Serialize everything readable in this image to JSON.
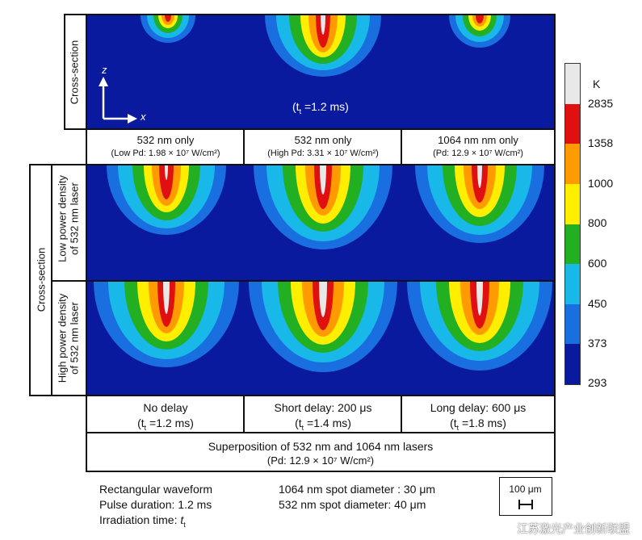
{
  "top_left_label": "Cross-section",
  "top_time": "(tt =1.2 ms)",
  "top_time_t": "(t",
  "top_time_sub": "t",
  "top_time_rest": " =1.2 ms)",
  "axis_z": "z",
  "axis_x": "x",
  "top_captions": [
    {
      "line1": "532 nm only",
      "line2": "(Low Pd: 1.98 × 10⁷ W/cm²)"
    },
    {
      "line1": "532 nm only",
      "line2": "(High Pd: 3.31 × 10⁷ W/cm²)"
    },
    {
      "line1": "1064 nm nm only",
      "line2": "(Pd: 12.9 × 10⁷ W/cm²)"
    }
  ],
  "left_big_label": "Cross-section",
  "row_labels": [
    {
      "line1": "Low power density",
      "line2": "of 532 nm laser"
    },
    {
      "line1": "High power density",
      "line2": "of 532 nm laser"
    }
  ],
  "bottom_captions": [
    {
      "line1": "No delay",
      "line2_pre": "(t",
      "line2_sub": "t",
      "line2_post": " =1.2 ms)"
    },
    {
      "line1": "Short delay: 200 μs",
      "line2_pre": "(t",
      "line2_sub": "t",
      "line2_post": " =1.4 ms)"
    },
    {
      "line1": "Long delay: 600 μs",
      "line2_pre": "(t",
      "line2_sub": "t",
      "line2_post": " =1.8 ms)"
    }
  ],
  "superposition": {
    "line1": "Superposition of 532 nm and 1064 nm lasers",
    "line2": "(Pd: 12.9 × 10⁷ W/cm²)"
  },
  "notes_left": [
    "Rectangular waveform",
    "Pulse duration: 1.2 ms",
    "Irradiation time: "
  ],
  "notes_left_t": "t",
  "notes_left_t_sub": "t",
  "notes_right": [
    "1064 nm spot diameter : 30 μm",
    "532 nm spot diameter: 40 μm"
  ],
  "scale_bar_label": "100 μm",
  "colorbar": {
    "unit": "K",
    "ticks": [
      "2835",
      "1358",
      "1000",
      "800",
      "600",
      "450",
      "373",
      "293"
    ],
    "colors": [
      "#e8e8e8",
      "#e01010",
      "#ff9a00",
      "#ffee00",
      "#22b022",
      "#18b8e8",
      "#1a6fe0",
      "#0a1a9e"
    ]
  },
  "watermark": "江苏激光产业创新联盟"
}
